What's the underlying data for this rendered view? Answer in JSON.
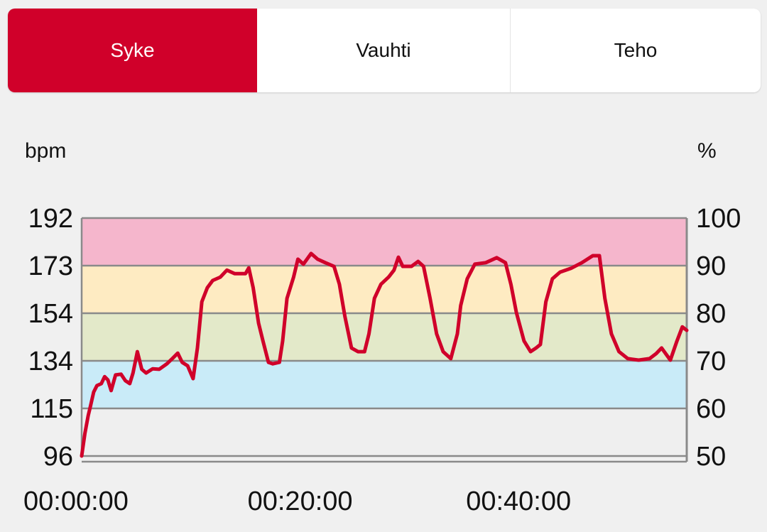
{
  "tabs": [
    {
      "label": "Syke",
      "active": true
    },
    {
      "label": "Vauhti",
      "active": false
    },
    {
      "label": "Teho",
      "active": false
    }
  ],
  "colors": {
    "accent": "#d0002a",
    "line": "#d0002a",
    "zones": [
      "#f5b6cc",
      "#feebc2",
      "#e3e9c9",
      "#c9ebf8",
      "#efefef"
    ],
    "grid": "#8a8a8a"
  },
  "chart_data": {
    "type": "line",
    "title": "",
    "ylabel": "bpm",
    "y2label": "%",
    "xlabel": "",
    "ylim": [
      96,
      192
    ],
    "y2lim": [
      50,
      100
    ],
    "xlim": [
      0,
      55.4
    ],
    "yticks": [
      "192",
      "173",
      "154",
      "134",
      "115",
      "96"
    ],
    "y2ticks": [
      "100",
      "90",
      "80",
      "70",
      "60",
      "50"
    ],
    "xticks": [
      {
        "label": "00:00:00",
        "min": 0
      },
      {
        "label": "00:20:00",
        "min": 20
      },
      {
        "label": "00:40:00",
        "min": 40
      }
    ],
    "zones_pct": [
      [
        90,
        100
      ],
      [
        80,
        90
      ],
      [
        70,
        80
      ],
      [
        60,
        70
      ],
      [
        50,
        60
      ]
    ],
    "series": [
      {
        "name": "Syke",
        "x_unit": "min",
        "points": [
          [
            0,
            96
          ],
          [
            0.3,
            105.2
          ],
          [
            0.6,
            112.3
          ],
          [
            0.8,
            116
          ],
          [
            1.1,
            121.8
          ],
          [
            1.4,
            124.4
          ],
          [
            1.8,
            125.2
          ],
          [
            2.1,
            128
          ],
          [
            2.4,
            126.7
          ],
          [
            2.7,
            122.4
          ],
          [
            3.1,
            128.7
          ],
          [
            3.6,
            129
          ],
          [
            4.0,
            126.4
          ],
          [
            4.4,
            125.2
          ],
          [
            4.7,
            129.5
          ],
          [
            5.1,
            138.1
          ],
          [
            5.5,
            131
          ],
          [
            5.9,
            129.5
          ],
          [
            6.5,
            131.2
          ],
          [
            7.1,
            131
          ],
          [
            7.8,
            133.2
          ],
          [
            8.3,
            135.3
          ],
          [
            8.8,
            137.5
          ],
          [
            9.2,
            133.8
          ],
          [
            9.7,
            132.4
          ],
          [
            10.2,
            127.2
          ],
          [
            10.6,
            139.6
          ],
          [
            11.0,
            158.2
          ],
          [
            11.5,
            163.9
          ],
          [
            12.0,
            166.8
          ],
          [
            12.7,
            168.2
          ],
          [
            13.3,
            171
          ],
          [
            14.0,
            169.6
          ],
          [
            15.0,
            169.6
          ],
          [
            15.3,
            171.9
          ],
          [
            15.7,
            163.9
          ],
          [
            16.2,
            149.6
          ],
          [
            16.6,
            142.4
          ],
          [
            17.1,
            133.8
          ],
          [
            17.5,
            133.2
          ],
          [
            18.1,
            133.8
          ],
          [
            18.4,
            142.4
          ],
          [
            18.8,
            159.6
          ],
          [
            19.4,
            168.2
          ],
          [
            19.8,
            175.4
          ],
          [
            20.3,
            173.4
          ],
          [
            21.0,
            177.7
          ],
          [
            21.6,
            175.4
          ],
          [
            22.3,
            174
          ],
          [
            23.1,
            172.5
          ],
          [
            23.6,
            165.3
          ],
          [
            24.1,
            152.4
          ],
          [
            24.7,
            139.6
          ],
          [
            25.3,
            138.1
          ],
          [
            25.9,
            138.1
          ],
          [
            26.3,
            145.3
          ],
          [
            26.8,
            159.6
          ],
          [
            27.4,
            165.3
          ],
          [
            28.1,
            168.2
          ],
          [
            28.6,
            171
          ],
          [
            29.0,
            176.2
          ],
          [
            29.4,
            172.5
          ],
          [
            30.2,
            172.5
          ],
          [
            30.8,
            174.5
          ],
          [
            31.3,
            172.5
          ],
          [
            31.9,
            159.6
          ],
          [
            32.5,
            145.3
          ],
          [
            33.1,
            138.1
          ],
          [
            33.8,
            135.3
          ],
          [
            34.4,
            145.3
          ],
          [
            34.7,
            156.7
          ],
          [
            35.3,
            167.5
          ],
          [
            36.0,
            173.4
          ],
          [
            37.0,
            174
          ],
          [
            38.0,
            176
          ],
          [
            38.8,
            174
          ],
          [
            39.3,
            165.3
          ],
          [
            39.8,
            153.9
          ],
          [
            40.5,
            142.4
          ],
          [
            41.1,
            138.1
          ],
          [
            41.6,
            139.6
          ],
          [
            42.0,
            141
          ],
          [
            42.5,
            158.2
          ],
          [
            43.1,
            167.5
          ],
          [
            43.8,
            170.2
          ],
          [
            44.8,
            171.7
          ],
          [
            45.8,
            174
          ],
          [
            46.8,
            176.8
          ],
          [
            47.4,
            176.8
          ],
          [
            47.9,
            159.6
          ],
          [
            48.5,
            145.3
          ],
          [
            49.2,
            138.1
          ],
          [
            50.0,
            135.3
          ],
          [
            51.0,
            134.7
          ],
          [
            52.0,
            135.3
          ],
          [
            52.6,
            137.3
          ],
          [
            53.1,
            139.6
          ],
          [
            53.9,
            134.7
          ],
          [
            54.5,
            142.4
          ],
          [
            55.0,
            148.1
          ],
          [
            55.4,
            146.7
          ]
        ]
      }
    ]
  }
}
